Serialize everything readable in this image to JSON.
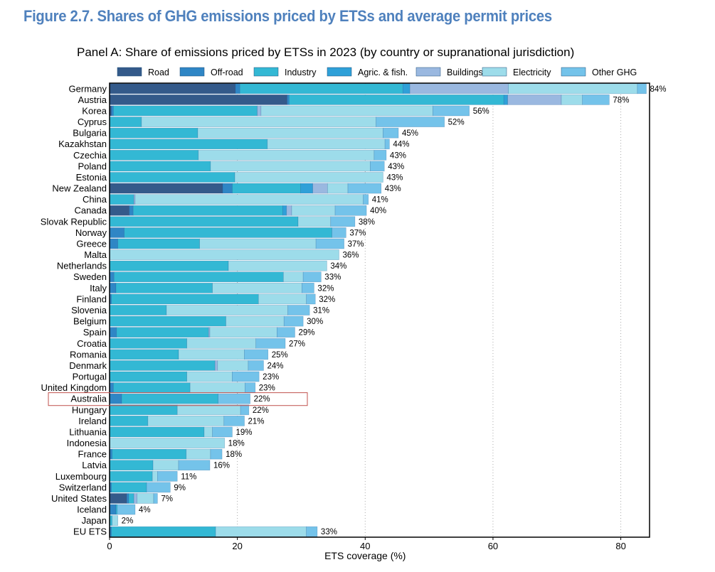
{
  "figure_title": "Figure 2.7. Shares of GHG emissions priced by ETSs and average permit prices",
  "chart_data": {
    "type": "bar",
    "orientation": "horizontal",
    "stacked": true,
    "title": "Panel A: Share of emissions priced by ETSs in 2023 (by country or supranational jurisdiction)",
    "xlabel": "ETS coverage (%)",
    "ylabel": "",
    "xlim": [
      0,
      84.5
    ],
    "xticks": [
      0,
      20,
      40,
      60,
      80
    ],
    "grid": "vertical dotted at 40, 60, 80",
    "legend_position": "top",
    "highlighted_category": "Australia",
    "categories": [
      "Germany",
      "Austria",
      "Korea",
      "Cyprus",
      "Bulgaria",
      "Kazakhstan",
      "Czechia",
      "Poland",
      "Estonia",
      "New Zealand",
      "China",
      "Canada",
      "Slovak Republic",
      "Norway",
      "Greece",
      "Malta",
      "Netherlands",
      "Sweden",
      "Italy",
      "Finland",
      "Slovenia",
      "Belgium",
      "Spain",
      "Croatia",
      "Romania",
      "Denmark",
      "Portugal",
      "United Kingdom",
      "Australia",
      "Hungary",
      "Ireland",
      "Lithuania",
      "Indonesia",
      "France",
      "Latvia",
      "Luxembourg",
      "Switzerland",
      "United States",
      "Iceland",
      "Japan",
      "EU ETS"
    ],
    "total_labels": [
      "84%",
      "78%",
      "56%",
      "52%",
      "45%",
      "44%",
      "43%",
      "43%",
      "43%",
      "43%",
      "41%",
      "40%",
      "38%",
      "37%",
      "37%",
      "36%",
      "34%",
      "33%",
      "32%",
      "32%",
      "31%",
      "30%",
      "29%",
      "27%",
      "25%",
      "24%",
      "23%",
      "23%",
      "22%",
      "22%",
      "21%",
      "19%",
      "18%",
      "18%",
      "16%",
      "11%",
      "9%",
      "7%",
      "4%",
      "2%",
      "33%"
    ],
    "series": [
      {
        "name": "Road",
        "color": "#345a8a",
        "values": [
          19.7,
          27.8,
          0.3,
          0,
          0,
          0,
          0,
          0,
          0,
          17.7,
          0,
          3.1,
          0,
          0,
          0,
          0,
          0,
          0,
          0,
          0,
          0,
          0,
          0,
          0,
          0,
          0,
          0,
          0,
          0,
          0,
          0,
          0,
          0,
          0,
          0,
          0,
          0,
          2.7,
          0,
          0,
          0
        ]
      },
      {
        "name": "Off-road",
        "color": "#2f86c5",
        "values": [
          0.7,
          0.3,
          0.3,
          0,
          0,
          0,
          0,
          0,
          0,
          1.5,
          0,
          0.6,
          0,
          2.3,
          1.3,
          0,
          0,
          0.7,
          1.0,
          0.3,
          0,
          0,
          1.1,
          0,
          0,
          0,
          0,
          0.6,
          1.9,
          0,
          0,
          0,
          0,
          0.4,
          0,
          0,
          0.3,
          0.3,
          1.0,
          0,
          0.3
        ]
      },
      {
        "name": "Industry",
        "color": "#33b8d4",
        "values": [
          25.5,
          33.6,
          22.5,
          5.0,
          13.8,
          24.7,
          13.9,
          15.8,
          19.6,
          10.7,
          3.8,
          23.4,
          29.5,
          32.5,
          12.8,
          0,
          18.6,
          26.5,
          15.1,
          23.0,
          8.9,
          18.2,
          14.4,
          12.1,
          10.8,
          16.5,
          12.1,
          12.0,
          15.1,
          10.6,
          6.0,
          14.8,
          0,
          11.6,
          6.8,
          6.7,
          5.5,
          0.8,
          0.2,
          0.4,
          16.3
        ]
      },
      {
        "name": "Agric. & fish.",
        "color": "#2fa0d8",
        "values": [
          1.1,
          0.6,
          0,
          0,
          0,
          0,
          0,
          0,
          0,
          1.9,
          0,
          0.6,
          0,
          0,
          0,
          0,
          0,
          0,
          0,
          0,
          0,
          0,
          0,
          0,
          0,
          0,
          0,
          0,
          0,
          0,
          0,
          0,
          0,
          0,
          0,
          0,
          0,
          0,
          0,
          0,
          0
        ]
      },
      {
        "name": "Buildings",
        "color": "#9ab8e0",
        "values": [
          15.4,
          8.4,
          0.6,
          0,
          0,
          0,
          0,
          0,
          0,
          2.3,
          0.2,
          0.8,
          0,
          0,
          0,
          0,
          0,
          0,
          0,
          0,
          0,
          0,
          0.2,
          0,
          0,
          0.4,
          0,
          0,
          0,
          0,
          0,
          0,
          0,
          0,
          0,
          0,
          0,
          0.5,
          0,
          0,
          0
        ]
      },
      {
        "name": "Electricity",
        "color": "#9ddcea",
        "values": [
          20.2,
          3.3,
          26.9,
          36.7,
          29.0,
          18.4,
          27.5,
          25.0,
          23.2,
          3.2,
          35.7,
          6.8,
          5.1,
          0,
          18.2,
          35.9,
          15.4,
          3.1,
          14.0,
          7.5,
          19.0,
          9.1,
          10.5,
          10.8,
          10.3,
          4.8,
          7.1,
          8.6,
          0,
          9.9,
          11.9,
          1.3,
          18.0,
          3.8,
          4.0,
          0.8,
          0,
          2.6,
          0,
          0.9,
          14.2
        ]
      },
      {
        "name": "Other GHG",
        "color": "#74c3ea",
        "values": [
          1.4,
          4.2,
          5.7,
          10.7,
          2.4,
          0.7,
          1.9,
          2.2,
          0,
          5.2,
          0.8,
          4.9,
          3.8,
          2.2,
          4.4,
          0,
          0,
          2.8,
          1.9,
          1.4,
          3.4,
          3.0,
          2.8,
          4.6,
          3.7,
          2.4,
          4.2,
          1.6,
          5.0,
          1.3,
          3.2,
          3.1,
          0,
          1.8,
          4.9,
          3.1,
          3.7,
          0.6,
          2.8,
          0,
          1.7
        ]
      }
    ]
  }
}
